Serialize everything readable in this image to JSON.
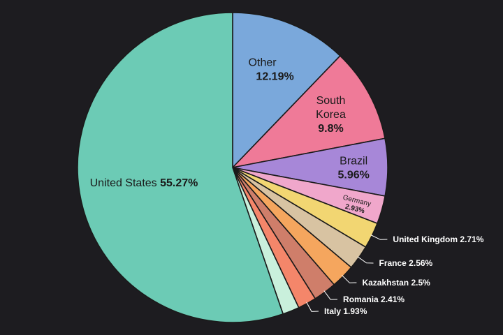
{
  "chart_data": {
    "type": "pie",
    "title": "",
    "start_angle_deg": 0,
    "direction": "clockwise",
    "slices": [
      {
        "label": "Other",
        "value_text": "12.19%",
        "value": 12.19,
        "color": "#7aa8db"
      },
      {
        "label": "South Korea",
        "value_text": "9.8%",
        "value": 9.8,
        "color": "#ef7a98"
      },
      {
        "label": "Brazil",
        "value_text": "5.96%",
        "value": 5.96,
        "color": "#a787d8"
      },
      {
        "label": "Germany",
        "value_text": "2.93%",
        "value": 2.93,
        "color": "#f0a7cb"
      },
      {
        "label": "United Kingdom",
        "value_text": "2.71%",
        "value": 2.71,
        "color": "#f2d672"
      },
      {
        "label": "France",
        "value_text": "2.56%",
        "value": 2.56,
        "color": "#d8c3a2"
      },
      {
        "label": "Kazakhstan",
        "value_text": "2.5%",
        "value": 2.5,
        "color": "#f5a65e"
      },
      {
        "label": "Romania",
        "value_text": "2.41%",
        "value": 2.41,
        "color": "#cf7e6a"
      },
      {
        "label": "Italy",
        "value_text": "1.93%",
        "value": 1.93,
        "color": "#f4866a"
      },
      {
        "label": "",
        "value_text": "",
        "value": 1.74,
        "color": "#c9f0dc"
      },
      {
        "label": "United States",
        "value_text": "55.27%",
        "value": 55.27,
        "color": "#6ccbb5"
      }
    ],
    "colors": {
      "edge": "#1a1a1a",
      "background": "#1d1c20",
      "leader": "#ffffff"
    }
  }
}
